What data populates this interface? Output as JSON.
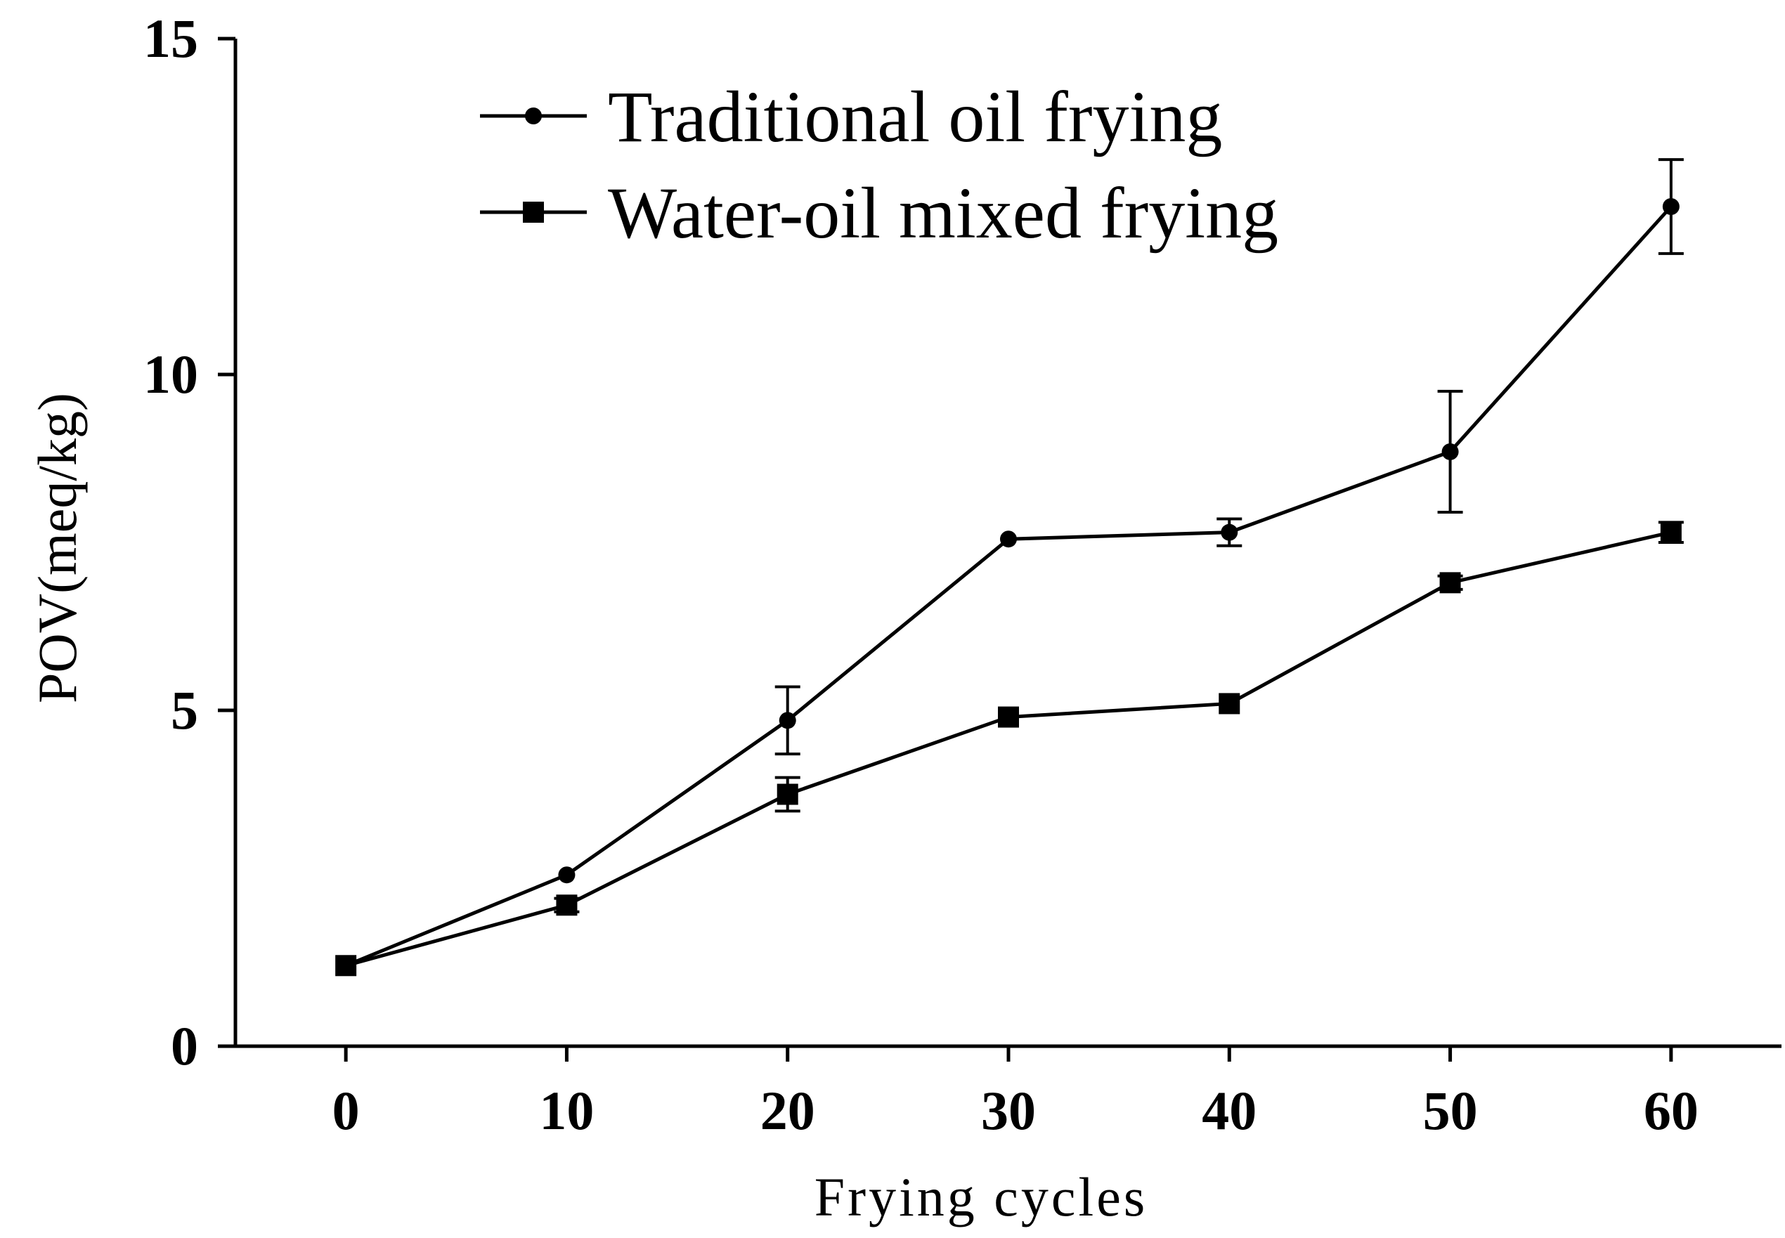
{
  "chart_data": {
    "type": "line",
    "title": "",
    "xlabel": "Frying cycles",
    "ylabel": "POV(meq/kg)",
    "xlim": [
      -5,
      65
    ],
    "ylim": [
      0,
      15
    ],
    "x_ticks": [
      "0",
      "10",
      "20",
      "30",
      "40",
      "50",
      "60"
    ],
    "y_ticks": [
      "0",
      "5",
      "10",
      "15"
    ],
    "x": [
      0,
      10,
      20,
      30,
      40,
      50,
      60
    ],
    "grid": false,
    "legend_position": "top-center",
    "series": [
      {
        "name": "Traditional oil frying",
        "marker": "circle",
        "values": [
          1.2,
          2.55,
          4.85,
          7.55,
          7.65,
          8.85,
          12.5
        ],
        "error": [
          0.05,
          0.05,
          0.5,
          0.05,
          0.2,
          0.9,
          0.7
        ]
      },
      {
        "name": "Water-oil mixed frying",
        "marker": "square",
        "values": [
          1.2,
          2.1,
          3.75,
          4.9,
          5.1,
          6.9,
          7.65
        ],
        "error": [
          0.05,
          0.1,
          0.25,
          0.05,
          0.05,
          0.1,
          0.15
        ]
      }
    ]
  }
}
